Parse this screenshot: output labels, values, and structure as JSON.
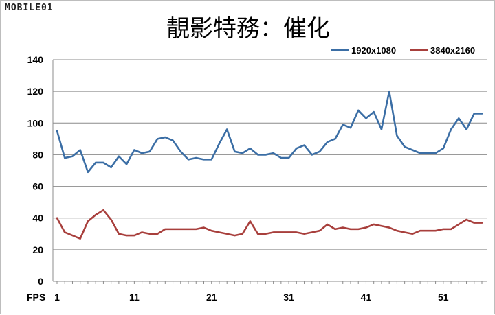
{
  "watermark": "MOBILE01",
  "chart_data": {
    "type": "line",
    "title": "靚影特務：催化",
    "xlabel": "FPS",
    "ylabel": "",
    "ylim": [
      0,
      140
    ],
    "yticks": [
      0,
      20,
      40,
      60,
      80,
      100,
      120,
      140
    ],
    "x_tick_labels": [
      "1",
      "11",
      "21",
      "31",
      "41",
      "51"
    ],
    "xlim": [
      1,
      56
    ],
    "grid": true,
    "legend_position": "top-right",
    "x": [
      1,
      2,
      3,
      4,
      5,
      6,
      7,
      8,
      9,
      10,
      11,
      12,
      13,
      14,
      15,
      16,
      17,
      18,
      19,
      20,
      21,
      22,
      23,
      24,
      25,
      26,
      27,
      28,
      29,
      30,
      31,
      32,
      33,
      34,
      35,
      36,
      37,
      38,
      39,
      40,
      41,
      42,
      43,
      44,
      45,
      46,
      47,
      48,
      49,
      50,
      51,
      52,
      53,
      54,
      55,
      56
    ],
    "series": [
      {
        "name": "1920x1080",
        "color": "#3b6ea5",
        "values": [
          95,
          78,
          79,
          83,
          69,
          75,
          75,
          72,
          79,
          74,
          83,
          81,
          82,
          90,
          91,
          89,
          82,
          77,
          78,
          77,
          77,
          87,
          96,
          82,
          81,
          84,
          80,
          80,
          81,
          78,
          78,
          84,
          86,
          80,
          82,
          88,
          90,
          99,
          97,
          108,
          103,
          107,
          96,
          120,
          92,
          85,
          83,
          81,
          81,
          81,
          84,
          96,
          103,
          96,
          106,
          106
        ]
      },
      {
        "name": "3840x2160",
        "color": "#a83f3c",
        "values": [
          40,
          31,
          29,
          27,
          38,
          42,
          45,
          39,
          30,
          29,
          29,
          31,
          30,
          30,
          33,
          33,
          33,
          33,
          33,
          34,
          32,
          31,
          30,
          29,
          30,
          38,
          30,
          30,
          31,
          31,
          31,
          31,
          30,
          31,
          32,
          36,
          33,
          34,
          33,
          33,
          34,
          36,
          35,
          34,
          32,
          31,
          30,
          32,
          32,
          32,
          33,
          33,
          36,
          39,
          37,
          37
        ]
      }
    ]
  }
}
